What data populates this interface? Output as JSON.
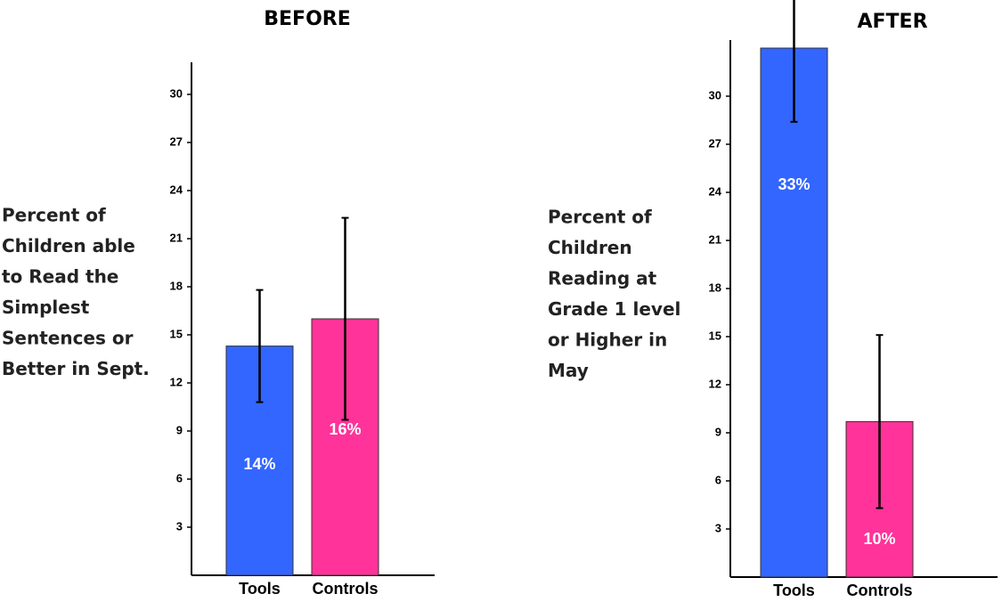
{
  "chart_data": [
    {
      "type": "bar",
      "title": "BEFORE",
      "ylabel": [
        "Percent of",
        "Children able",
        "to Read the",
        "Simplest",
        "Sentences or",
        "Better in Sept."
      ],
      "categories": [
        "Tools",
        "Controls"
      ],
      "values": [
        14.3,
        16.0
      ],
      "value_labels": [
        "14%",
        "16%"
      ],
      "errors": [
        3.5,
        6.3
      ],
      "colors": [
        "#3366ff",
        "#ff3399"
      ],
      "ylim": [
        0,
        32
      ],
      "yticks": [
        3,
        6,
        9,
        12,
        15,
        18,
        21,
        24,
        27,
        30
      ]
    },
    {
      "type": "bar",
      "title": "AFTER",
      "ylabel": [
        "Percent of",
        "Children",
        "Reading at",
        "Grade 1 level",
        "or Higher in",
        "May"
      ],
      "categories": [
        "Tools",
        "Controls"
      ],
      "values": [
        33,
        9.7
      ],
      "value_labels": [
        "33%",
        "10%"
      ],
      "errors": [
        4.6,
        5.4
      ],
      "colors": [
        "#3366ff",
        "#ff3399"
      ],
      "ylim": [
        0,
        33.5
      ],
      "yticks": [
        3,
        6,
        9,
        12,
        15,
        18,
        21,
        24,
        27,
        30
      ]
    }
  ]
}
